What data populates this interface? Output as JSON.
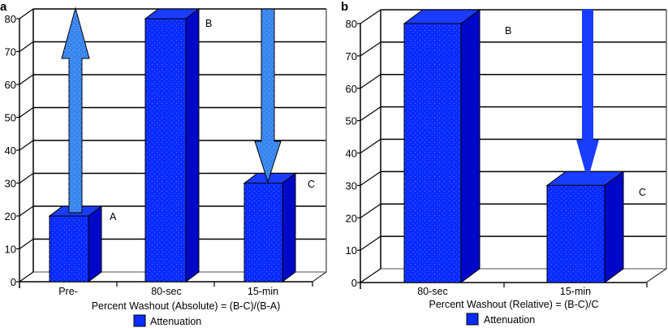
{
  "colors": {
    "bar_front": "#0a2cff",
    "bar_side": "#0008c8",
    "bar_top": "#1a3cff",
    "arrow_light": "#3a86ee",
    "arrow_dark": "#1a3cff",
    "grid": "#000000",
    "floor": "#888888"
  },
  "chart_data": [
    {
      "panel": "a",
      "type": "bar",
      "style": "3d-column",
      "categories": [
        "Pre-",
        "80-sec",
        "15-min"
      ],
      "series": [
        {
          "name": "Attenuation",
          "values": [
            20,
            80,
            30
          ]
        }
      ],
      "point_labels": [
        "A",
        "B",
        "C"
      ],
      "ylim": [
        0,
        80
      ],
      "yticks": [
        0,
        10,
        20,
        30,
        40,
        50,
        60,
        70,
        80
      ],
      "xlabel": "Percent Washout (Absolute) = (B-C)/(B-A)",
      "ylabel": "",
      "grid": true,
      "legend": {
        "entries": [
          "Attenuation"
        ],
        "position": "bottom"
      },
      "annotations": [
        {
          "type": "arrow",
          "direction": "up",
          "from_value": 20,
          "to_value": 82,
          "category": "Pre-",
          "color": "light"
        },
        {
          "type": "arrow",
          "direction": "down",
          "from_value": 82,
          "to_value": 30,
          "category": "15-min",
          "color": "light"
        }
      ]
    },
    {
      "panel": "b",
      "type": "bar",
      "style": "3d-column",
      "categories": [
        "80-sec",
        "15-min"
      ],
      "series": [
        {
          "name": "Attenuation",
          "values": [
            80,
            30
          ]
        }
      ],
      "point_labels": [
        "B",
        "C"
      ],
      "ylim": [
        0,
        80
      ],
      "yticks": [
        0,
        10,
        20,
        30,
        40,
        50,
        60,
        70,
        80
      ],
      "xlabel": "Percent Washout (Relative) = (B-C)/C",
      "ylabel": "",
      "grid": true,
      "legend": {
        "entries": [
          "Attenuation"
        ],
        "position": "bottom"
      },
      "annotations": [
        {
          "type": "arrow",
          "direction": "down",
          "from_value": 84,
          "to_value": 30,
          "category": "15-min",
          "color": "dark"
        }
      ]
    }
  ]
}
